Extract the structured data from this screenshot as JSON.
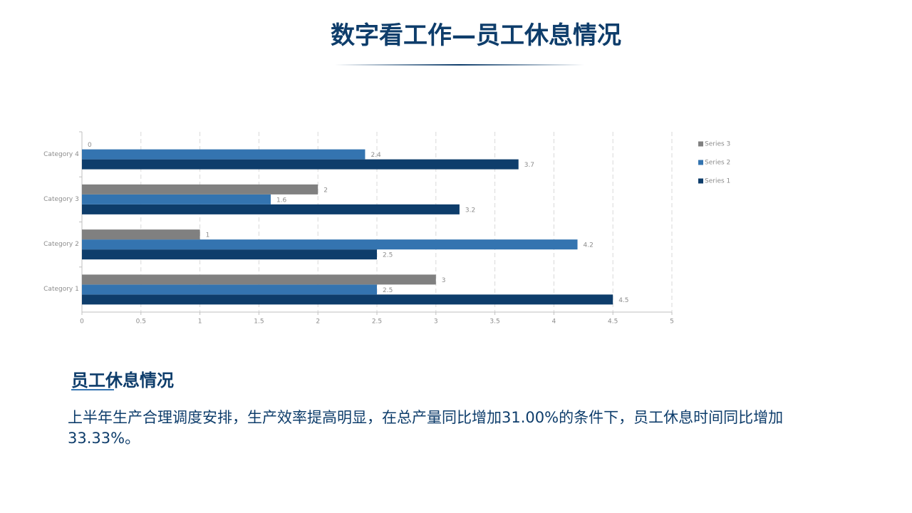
{
  "header": {
    "title": "数字看工作—员工休息情况"
  },
  "chart_data": {
    "type": "bar",
    "orientation": "horizontal",
    "categories": [
      "Category 1",
      "Category 2",
      "Category 3",
      "Category 4"
    ],
    "series": [
      {
        "name": "Series 1",
        "color": "#0e3d6b",
        "values": [
          4.5,
          2.5,
          3.2,
          3.7
        ]
      },
      {
        "name": "Series 2",
        "color": "#3474b0",
        "values": [
          2.5,
          4.2,
          1.6,
          2.4
        ]
      },
      {
        "name": "Series 3",
        "color": "#808080",
        "values": [
          3,
          1,
          2,
          0
        ]
      }
    ],
    "xlim": [
      0,
      5
    ],
    "xticks": [
      0,
      0.5,
      1,
      1.5,
      2,
      2.5,
      3,
      3.5,
      4,
      4.5,
      5
    ],
    "grid": true,
    "legend": "right"
  },
  "section": {
    "heading": "员工休息情况",
    "body": "上半年生产合理调度安排，生产效率提高明显，在总产量同比增加31.00%的条件下，员工休息时间同比增加33.33%。"
  }
}
